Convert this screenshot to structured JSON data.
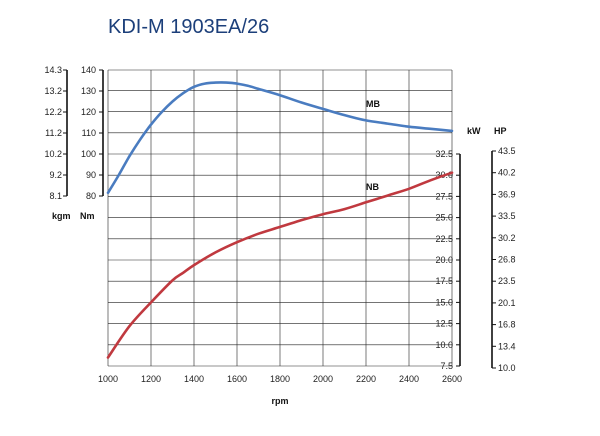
{
  "title": "KDI-M 1903EA/26",
  "colors": {
    "torque": "#4a7cc0",
    "power": "#c0393f",
    "grid": "#222222"
  },
  "chart_data": {
    "type": "line",
    "title": "KDI-M 1903EA/26",
    "xlabel": "rpm",
    "xlim": [
      1000,
      2600
    ],
    "x_ticks": [
      "1000",
      "1200",
      "1400",
      "1600",
      "1800",
      "2000",
      "2200",
      "2400",
      "2600"
    ],
    "grid": true,
    "axes": {
      "torque_nm": {
        "label": "Nm",
        "range": [
          80,
          140
        ],
        "ticks": [
          "80",
          "90",
          "100",
          "110",
          "120",
          "130",
          "140"
        ]
      },
      "torque_kgm": {
        "label": "kgm",
        "range": [
          8.1,
          14.3
        ],
        "ticks": [
          "8.1",
          "9.2",
          "10.2",
          "11.2",
          "12.2",
          "13.2",
          "14.3"
        ]
      },
      "power_kw": {
        "label": "kW",
        "range": [
          7.5,
          32.5
        ],
        "ticks": [
          "7.5",
          "10.0",
          "12.5",
          "15.0",
          "17.5",
          "20.0",
          "22.5",
          "25.0",
          "27.5",
          "30.0",
          "32.5"
        ]
      },
      "power_hp": {
        "label": "HP",
        "range": [
          10.0,
          43.5
        ],
        "ticks": [
          "10.0",
          "13.4",
          "16.8",
          "20.1",
          "23.5",
          "26.8",
          "30.2",
          "33.5",
          "36.9",
          "40.2",
          "43.5"
        ]
      }
    },
    "series": [
      {
        "name": "MB",
        "axis": "torque_nm",
        "x": [
          1000,
          1050,
          1100,
          1150,
          1200,
          1250,
          1300,
          1350,
          1400,
          1450,
          1500,
          1550,
          1600,
          1650,
          1700,
          1800,
          1900,
          2000,
          2100,
          2200,
          2300,
          2400,
          2500,
          2600
        ],
        "values": [
          81.5,
          90,
          99,
          107,
          114,
          120,
          125,
          129,
          132,
          133.5,
          134,
          134,
          133.5,
          132.5,
          131,
          128,
          124.5,
          121.5,
          118.5,
          116,
          114.5,
          113,
          112,
          111
        ]
      },
      {
        "name": "NB",
        "axis": "power_kw",
        "x": [
          1000,
          1100,
          1200,
          1300,
          1350,
          1400,
          1500,
          1600,
          1700,
          1800,
          1900,
          2000,
          2100,
          2200,
          2300,
          2400,
          2500,
          2600
        ],
        "values": [
          8.5,
          12.2,
          15.0,
          17.6,
          18.5,
          19.4,
          20.9,
          22.1,
          23.1,
          23.9,
          24.7,
          25.4,
          26.0,
          26.8,
          27.6,
          28.4,
          29.4,
          30.3
        ]
      }
    ]
  }
}
